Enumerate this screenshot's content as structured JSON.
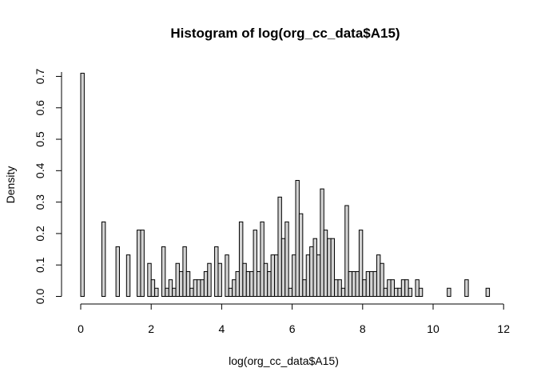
{
  "chart_data": {
    "type": "bar",
    "title": "Histogram of log(org_cc_data$A15)",
    "xlabel": "log(org_cc_data$A15)",
    "ylabel": "Density",
    "xlim": [
      0,
      11.6
    ],
    "ylim": [
      0,
      0.7
    ],
    "bin_width": 0.1,
    "x_ticks": [
      0,
      2,
      4,
      6,
      8,
      10,
      12
    ],
    "y_ticks": [
      0.0,
      0.1,
      0.2,
      0.3,
      0.4,
      0.5,
      0.6,
      0.7
    ],
    "x_tick_labels": [
      "0",
      "2",
      "4",
      "6",
      "8",
      "10",
      "12"
    ],
    "y_tick_labels": [
      "0.0",
      "0.1",
      "0.2",
      "0.3",
      "0.4",
      "0.5",
      "0.6",
      "0.7"
    ],
    "bin_starts": [
      0,
      0.1,
      0.2,
      0.3,
      0.4,
      0.5,
      0.6,
      0.7,
      0.8,
      0.9,
      1.0,
      1.1,
      1.2,
      1.3,
      1.4,
      1.5,
      1.6,
      1.7,
      1.8,
      1.9,
      2.0,
      2.1,
      2.2,
      2.3,
      2.4,
      2.5,
      2.6,
      2.7,
      2.8,
      2.9,
      3.0,
      3.1,
      3.2,
      3.3,
      3.4,
      3.5,
      3.6,
      3.7,
      3.8,
      3.9,
      4.0,
      4.1,
      4.2,
      4.3,
      4.4,
      4.5,
      4.6,
      4.7,
      4.8,
      4.9,
      5.0,
      5.1,
      5.2,
      5.3,
      5.4,
      5.5,
      5.6,
      5.7,
      5.8,
      5.9,
      6.0,
      6.1,
      6.2,
      6.3,
      6.4,
      6.5,
      6.6,
      6.7,
      6.8,
      6.9,
      7.0,
      7.1,
      7.2,
      7.3,
      7.4,
      7.5,
      7.6,
      7.7,
      7.8,
      7.9,
      8.0,
      8.1,
      8.2,
      8.3,
      8.4,
      8.5,
      8.6,
      8.7,
      8.8,
      8.9,
      9.0,
      9.1,
      9.2,
      9.3,
      9.4,
      9.5,
      9.6,
      9.7,
      9.8,
      9.9,
      10.0,
      10.1,
      10.2,
      10.3,
      10.4,
      10.5,
      10.6,
      10.7,
      10.8,
      10.9,
      11.0,
      11.1,
      11.2,
      11.3,
      11.4,
      11.5
    ],
    "values": [
      0.71,
      0,
      0,
      0,
      0,
      0,
      0.237,
      0,
      0,
      0,
      0.158,
      0,
      0,
      0.132,
      0,
      0,
      0.211,
      0.211,
      0,
      0.105,
      0.053,
      0.026,
      0,
      0.158,
      0.026,
      0.053,
      0.026,
      0.105,
      0.079,
      0.158,
      0.079,
      0.026,
      0.053,
      0.053,
      0.053,
      0.079,
      0.105,
      0,
      0.158,
      0.105,
      0,
      0.132,
      0.026,
      0.053,
      0.079,
      0.237,
      0.105,
      0.079,
      0.079,
      0.211,
      0.079,
      0.237,
      0.105,
      0.079,
      0.132,
      0.132,
      0.316,
      0.184,
      0.237,
      0.026,
      0.132,
      0.369,
      0.263,
      0.053,
      0.132,
      0.158,
      0.184,
      0.132,
      0.342,
      0.211,
      0.184,
      0.184,
      0.053,
      0.053,
      0.026,
      0.289,
      0.079,
      0.079,
      0.079,
      0.211,
      0.053,
      0.079,
      0.079,
      0.079,
      0.132,
      0.105,
      0.026,
      0.053,
      0.053,
      0.026,
      0.026,
      0.053,
      0.053,
      0.026,
      0,
      0.053,
      0.026,
      0,
      0,
      0,
      0,
      0,
      0,
      0,
      0.026,
      0,
      0,
      0,
      0,
      0.053,
      0,
      0,
      0,
      0,
      0,
      0.026
    ]
  }
}
